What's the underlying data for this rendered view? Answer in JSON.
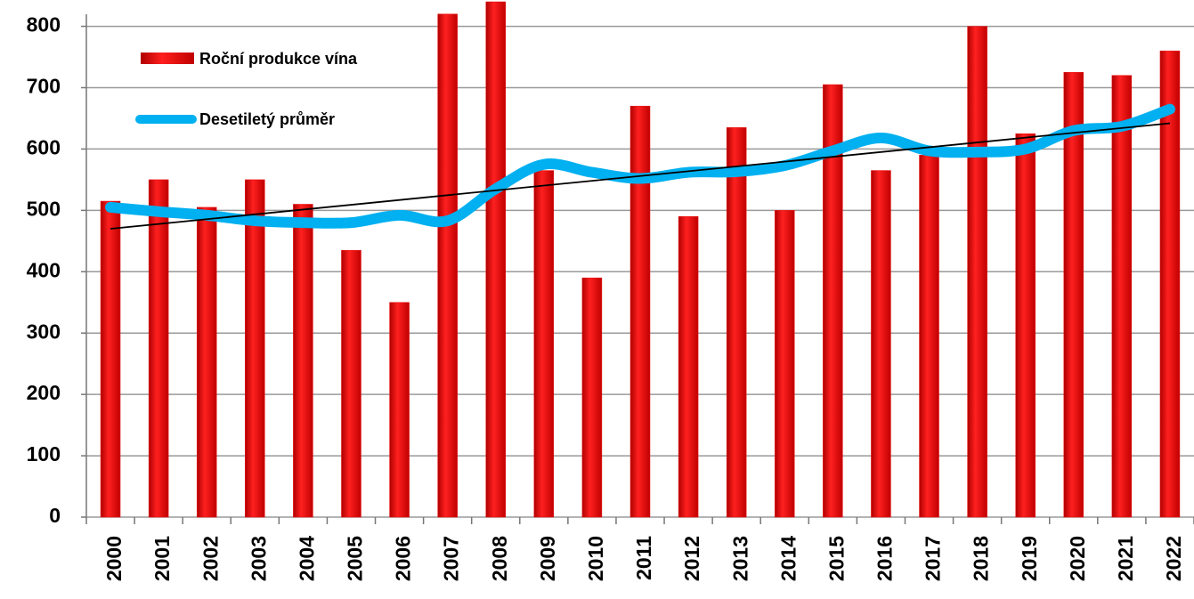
{
  "chart_data": {
    "type": "bar_line",
    "categories": [
      "2000",
      "2001",
      "2002",
      "2003",
      "2004",
      "2005",
      "2006",
      "2007",
      "2008",
      "2009",
      "2010",
      "2011",
      "2012",
      "2013",
      "2014",
      "2015",
      "2016",
      "2017",
      "2018",
      "2019",
      "2020",
      "2021",
      "2022"
    ],
    "series": [
      {
        "name": "Roční produkce vína",
        "type": "bar",
        "color": "#ee1111",
        "values": [
          515,
          550,
          505,
          550,
          510,
          435,
          350,
          820,
          840,
          565,
          390,
          670,
          490,
          635,
          500,
          705,
          565,
          590,
          800,
          625,
          725,
          720,
          760
        ]
      },
      {
        "name": "Desetiletý průměr",
        "type": "line",
        "color": "#00b0f0",
        "values": [
          505,
          498,
          492,
          483,
          480,
          480,
          492,
          483,
          535,
          575,
          562,
          552,
          562,
          563,
          573,
          597,
          618,
          597,
          595,
          600,
          630,
          637,
          665
        ]
      }
    ],
    "trendline": {
      "color": "#000000",
      "values": [
        470,
        642
      ]
    },
    "ylim": [
      0,
      840
    ],
    "yticks": [
      0,
      100,
      200,
      300,
      400,
      500,
      600,
      700,
      800
    ],
    "grid": true
  }
}
